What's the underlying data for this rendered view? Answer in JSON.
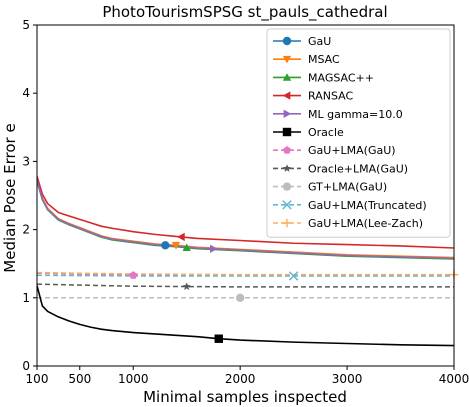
{
  "chart_data": {
    "type": "line",
    "title": "PhotoTourismSPSG st_pauls_cathedral",
    "xlabel": "Minimal samples inspected",
    "ylabel": "Median Pose Error e",
    "xlim": [
      100,
      4000
    ],
    "ylim": [
      0,
      5
    ],
    "xticks": [
      100,
      500,
      1000,
      2000,
      3000,
      4000
    ],
    "yticks": [
      0,
      1,
      2,
      3,
      4,
      5
    ],
    "grid": false,
    "legend_position": "upper right",
    "series": [
      {
        "name": "GaU",
        "color": "#1f77b4",
        "style": "solid",
        "marker": "circle",
        "marker_x": 1300,
        "x": [
          100,
          150,
          200,
          300,
          400,
          500,
          600,
          700,
          800,
          1000,
          1200,
          1400,
          1600,
          2000,
          2500,
          3000,
          3500,
          4000
        ],
        "y": [
          2.72,
          2.45,
          2.3,
          2.15,
          2.08,
          2.02,
          1.96,
          1.9,
          1.86,
          1.82,
          1.78,
          1.76,
          1.73,
          1.7,
          1.66,
          1.62,
          1.6,
          1.58
        ]
      },
      {
        "name": "MSAC",
        "color": "#ff7f0e",
        "style": "solid",
        "marker": "triangle-down",
        "marker_x": 1400,
        "x": [
          100,
          150,
          200,
          300,
          400,
          500,
          600,
          700,
          800,
          1000,
          1200,
          1400,
          1600,
          2000,
          2500,
          3000,
          3500,
          4000
        ],
        "y": [
          2.73,
          2.46,
          2.31,
          2.16,
          2.09,
          2.03,
          1.97,
          1.91,
          1.87,
          1.83,
          1.79,
          1.77,
          1.74,
          1.71,
          1.67,
          1.63,
          1.61,
          1.59
        ]
      },
      {
        "name": "MAGSAC++",
        "color": "#2ca02c",
        "style": "solid",
        "marker": "triangle-up",
        "marker_x": 1500,
        "x": [
          100,
          150,
          200,
          300,
          400,
          500,
          600,
          700,
          800,
          1000,
          1200,
          1400,
          1600,
          2000,
          2500,
          3000,
          3500,
          4000
        ],
        "y": [
          2.71,
          2.44,
          2.29,
          2.14,
          2.07,
          2.01,
          1.95,
          1.89,
          1.85,
          1.81,
          1.77,
          1.75,
          1.72,
          1.69,
          1.65,
          1.61,
          1.59,
          1.57
        ]
      },
      {
        "name": "RANSAC",
        "color": "#d62728",
        "style": "solid",
        "marker": "triangle-left",
        "marker_x": 1450,
        "x": [
          100,
          150,
          200,
          300,
          400,
          500,
          600,
          700,
          800,
          1000,
          1200,
          1400,
          1600,
          2000,
          2500,
          3000,
          3500,
          4000
        ],
        "y": [
          2.78,
          2.52,
          2.38,
          2.25,
          2.2,
          2.15,
          2.1,
          2.05,
          2.02,
          1.97,
          1.93,
          1.9,
          1.87,
          1.84,
          1.8,
          1.78,
          1.76,
          1.73
        ]
      },
      {
        "name": "ML   gamma=10.0",
        "color": "#9467bd",
        "style": "solid",
        "marker": "triangle-right",
        "marker_x": 1750,
        "x": [
          100,
          150,
          200,
          300,
          400,
          500,
          600,
          700,
          800,
          1000,
          1200,
          1400,
          1600,
          2000,
          2500,
          3000,
          3500,
          4000
        ],
        "y": [
          2.72,
          2.45,
          2.3,
          2.15,
          2.08,
          2.02,
          1.96,
          1.9,
          1.86,
          1.82,
          1.78,
          1.76,
          1.73,
          1.7,
          1.66,
          1.62,
          1.6,
          1.58
        ]
      },
      {
        "name": "Oracle",
        "color": "#000000",
        "style": "solid",
        "marker": "square",
        "marker_x": 1800,
        "x": [
          100,
          150,
          200,
          300,
          400,
          500,
          600,
          700,
          800,
          1000,
          1200,
          1400,
          1600,
          1800,
          2000,
          2500,
          3000,
          3500,
          4000
        ],
        "y": [
          1.18,
          0.88,
          0.8,
          0.72,
          0.66,
          0.61,
          0.57,
          0.54,
          0.52,
          0.49,
          0.47,
          0.45,
          0.43,
          0.4,
          0.38,
          0.35,
          0.33,
          0.31,
          0.3
        ]
      },
      {
        "name": "GaU+LMA(GaU)",
        "color": "#e377c2",
        "style": "dashed",
        "marker": "pentagon",
        "marker_x": 1000,
        "x": [
          100,
          1000,
          2000,
          3000,
          4000
        ],
        "y": [
          1.36,
          1.33,
          1.33,
          1.33,
          1.33
        ]
      },
      {
        "name": "Oracle+LMA(GaU)",
        "color": "#595959",
        "style": "dashed",
        "marker": "star",
        "marker_x": 1500,
        "x": [
          100,
          1000,
          2000,
          3000,
          4000
        ],
        "y": [
          1.2,
          1.17,
          1.16,
          1.16,
          1.16
        ]
      },
      {
        "name": "GT+LMA(GaU)",
        "color": "#bdbdbd",
        "style": "dashed",
        "marker": "circle",
        "marker_x": 2000,
        "x": [
          100,
          1000,
          2000,
          3000,
          4000
        ],
        "y": [
          1.0,
          1.0,
          1.0,
          1.0,
          1.0
        ]
      },
      {
        "name": "GaU+LMA(Truncated)",
        "color": "#5fb8d6",
        "style": "dashed",
        "marker": "x",
        "marker_x": 2500,
        "x": [
          100,
          1000,
          2000,
          3000,
          4000
        ],
        "y": [
          1.33,
          1.32,
          1.32,
          1.32,
          1.32
        ]
      },
      {
        "name": "GaU+LMA(Lee-Zach)",
        "color": "#ffad5c",
        "style": "dashed",
        "marker": "plus",
        "marker_x": 4000,
        "x": [
          100,
          1000,
          2000,
          3000,
          4000
        ],
        "y": [
          1.37,
          1.35,
          1.34,
          1.34,
          1.34
        ]
      }
    ]
  }
}
